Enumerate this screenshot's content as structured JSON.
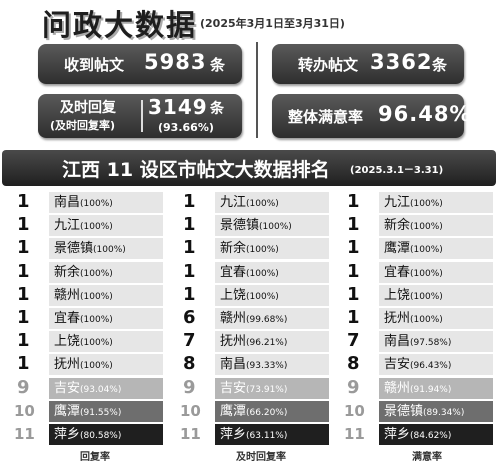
{
  "header": {
    "title": "问政大数据",
    "date_range": "(2025年3月1日至3月31日)"
  },
  "stats": {
    "posts": {
      "label": "收到帖文",
      "value": "5983",
      "unit": "条"
    },
    "transferred": {
      "label": "转办帖文",
      "value": "3362",
      "unit": "条"
    },
    "timely": {
      "label_line1": "及时回复",
      "label_line2": "(及时回复率)",
      "value": "3149",
      "unit": "条",
      "rate": "(93.66%)"
    },
    "satisfaction": {
      "label": "整体满意率",
      "value": "96.48%"
    }
  },
  "ranking": {
    "title": "江西 11 设区市帖文大数据排名",
    "period": "(2025.3.1－3.31)",
    "columns": [
      {
        "caption": "回复率",
        "rows": [
          {
            "rank": "1",
            "city": "南昌",
            "pct": "(100%)"
          },
          {
            "rank": "1",
            "city": "九江",
            "pct": "(100%)"
          },
          {
            "rank": "1",
            "city": "景德镇",
            "pct": "(100%)"
          },
          {
            "rank": "1",
            "city": "新余",
            "pct": "(100%)"
          },
          {
            "rank": "1",
            "city": "赣州",
            "pct": "(100%)"
          },
          {
            "rank": "1",
            "city": "宜春",
            "pct": "(100%)"
          },
          {
            "rank": "1",
            "city": "上饶",
            "pct": "(100%)"
          },
          {
            "rank": "1",
            "city": "抚州",
            "pct": "(100%)"
          },
          {
            "rank": "9",
            "city": "吉安",
            "pct": "(93.04%)"
          },
          {
            "rank": "10",
            "city": "鹰潭",
            "pct": "(91.55%)"
          },
          {
            "rank": "11",
            "city": "萍乡",
            "pct": "(80.58%)"
          }
        ]
      },
      {
        "caption": "及时回复率",
        "rows": [
          {
            "rank": "1",
            "city": "九江",
            "pct": "(100%)"
          },
          {
            "rank": "1",
            "city": "景德镇",
            "pct": "(100%)"
          },
          {
            "rank": "1",
            "city": "新余",
            "pct": "(100%)"
          },
          {
            "rank": "1",
            "city": "宜春",
            "pct": "(100%)"
          },
          {
            "rank": "1",
            "city": "上饶",
            "pct": "(100%)"
          },
          {
            "rank": "6",
            "city": "赣州",
            "pct": "(99.68%)"
          },
          {
            "rank": "7",
            "city": "抚州",
            "pct": "(96.21%)"
          },
          {
            "rank": "8",
            "city": "南昌",
            "pct": "(93.33%)"
          },
          {
            "rank": "9",
            "city": "吉安",
            "pct": "(73.91%)"
          },
          {
            "rank": "10",
            "city": "鹰潭",
            "pct": "(66.20%)"
          },
          {
            "rank": "11",
            "city": "萍乡",
            "pct": "(63.11%)"
          }
        ]
      },
      {
        "caption": "满意率",
        "rows": [
          {
            "rank": "1",
            "city": "九江",
            "pct": "(100%)"
          },
          {
            "rank": "1",
            "city": "新余",
            "pct": "(100%)"
          },
          {
            "rank": "1",
            "city": "鹰潭",
            "pct": "(100%)"
          },
          {
            "rank": "1",
            "city": "宜春",
            "pct": "(100%)"
          },
          {
            "rank": "1",
            "city": "上饶",
            "pct": "(100%)"
          },
          {
            "rank": "1",
            "city": "抚州",
            "pct": "(100%)"
          },
          {
            "rank": "7",
            "city": "南昌",
            "pct": "(97.58%)"
          },
          {
            "rank": "8",
            "city": "吉安",
            "pct": "(96.43%)"
          },
          {
            "rank": "9",
            "city": "赣州",
            "pct": "(91.94%)"
          },
          {
            "rank": "10",
            "city": "景德镇",
            "pct": "(89.34%)"
          },
          {
            "rank": "11",
            "city": "萍乡",
            "pct": "(84.62%)"
          }
        ]
      }
    ]
  }
}
